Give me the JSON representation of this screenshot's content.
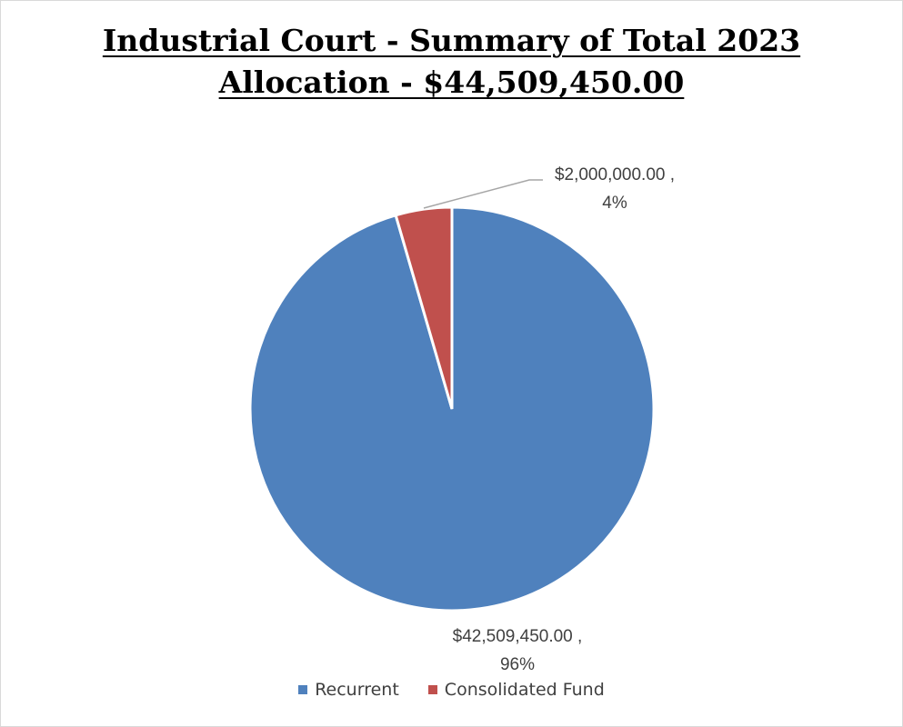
{
  "chart_data": {
    "type": "pie",
    "title_line1": "Industrial Court - Summary of Total 2023",
    "title_line2": "Allocation - $44,509,450.00",
    "slices": [
      {
        "name": "Recurrent",
        "value": 42509450.0,
        "percent": 96,
        "color": "#4f81bd",
        "label_value": "$42,509,450.00 ,",
        "label_percent": "96%"
      },
      {
        "name": "Consolidated Fund",
        "value": 2000000.0,
        "percent": 4,
        "color": "#c0504d",
        "label_value": "$2,000,000.00 ,",
        "label_percent": "4%"
      }
    ],
    "legend_placement": "bottom"
  }
}
